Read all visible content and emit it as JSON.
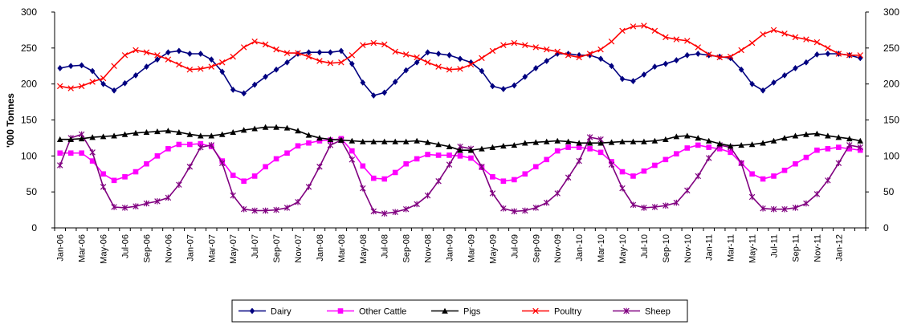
{
  "chart_data": {
    "type": "line",
    "ylabel": "'000 Tonnes",
    "ylim": [
      0,
      300
    ],
    "yticks": [
      0,
      50,
      100,
      150,
      200,
      250,
      300
    ],
    "secondary_y_axis": true,
    "grid": false,
    "legend_position": "bottom",
    "x": [
      "Jan-06",
      "Feb-06",
      "Mar-06",
      "Apr-06",
      "May-06",
      "Jun-06",
      "Jul-06",
      "Aug-06",
      "Sep-06",
      "Oct-06",
      "Nov-06",
      "Dec-06",
      "Jan-07",
      "Feb-07",
      "Mar-07",
      "Apr-07",
      "May-07",
      "Jun-07",
      "Jul-07",
      "Aug-07",
      "Sep-07",
      "Oct-07",
      "Nov-07",
      "Dec-07",
      "Jan-08",
      "Feb-08",
      "Mar-08",
      "Apr-08",
      "May-08",
      "Jun-08",
      "Jul-08",
      "Aug-08",
      "Sep-08",
      "Oct-08",
      "Nov-08",
      "Dec-08",
      "Jan-09",
      "Feb-09",
      "Mar-09",
      "Apr-09",
      "May-09",
      "Jun-09",
      "Jul-09",
      "Aug-09",
      "Sep-09",
      "Oct-09",
      "Nov-09",
      "Dec-09",
      "Jan-10",
      "Feb-10",
      "Mar-10",
      "Apr-10",
      "May-10",
      "Jun-10",
      "Jul-10",
      "Aug-10",
      "Sep-10",
      "Oct-10",
      "Nov-10",
      "Dec-10",
      "Jan-11",
      "Feb-11",
      "Mar-11",
      "Apr-11",
      "May-11",
      "Jun-11",
      "Jul-11",
      "Aug-11",
      "Sep-11",
      "Oct-11",
      "Nov-11",
      "Dec-11",
      "Jan-12",
      "Feb-12",
      "Mar-12"
    ],
    "xtick_labels": [
      "Jan-06",
      "Mar-06",
      "May-06",
      "Jul-06",
      "Sep-06",
      "Nov-06",
      "Jan-07",
      "Mar-07",
      "May-07",
      "Jul-07",
      "Sep-07",
      "Nov-07",
      "Jan-08",
      "Mar-08",
      "May-08",
      "Jul-08",
      "Sep-08",
      "Nov-08",
      "Jan-09",
      "Mar-09",
      "May-09",
      "Jul-09",
      "Sep-09",
      "Nov-09",
      "Jan-10",
      "Mar-10",
      "May-10",
      "Jul-10",
      "Sep-10",
      "Nov-10",
      "Jan-11",
      "Mar-11",
      "May-11",
      "Jul-11",
      "Sep-11",
      "Nov-11",
      "Jan-12"
    ],
    "series": [
      {
        "name": "Dairy",
        "color": "#000080",
        "marker": "diamond",
        "values": [
          222,
          225,
          226,
          218,
          200,
          191,
          201,
          212,
          224,
          234,
          244,
          246,
          242,
          242,
          234,
          217,
          192,
          187,
          199,
          210,
          220,
          230,
          242,
          244,
          244,
          244,
          246,
          228,
          202,
          184,
          188,
          203,
          219,
          230,
          244,
          242,
          240,
          235,
          230,
          218,
          197,
          193,
          198,
          210,
          222,
          232,
          242,
          242,
          240,
          240,
          235,
          225,
          207,
          204,
          213,
          224,
          228,
          233,
          240,
          242,
          240,
          238,
          236,
          220,
          200,
          191,
          202,
          212,
          222,
          230,
          241,
          242,
          242,
          240,
          236
        ]
      },
      {
        "name": "Other Cattle",
        "color": "#FF00FF",
        "marker": "square",
        "values": [
          104,
          104,
          104,
          93,
          75,
          66,
          71,
          78,
          89,
          100,
          110,
          116,
          116,
          117,
          113,
          93,
          73,
          65,
          72,
          85,
          96,
          104,
          114,
          118,
          121,
          122,
          124,
          107,
          86,
          69,
          68,
          77,
          89,
          96,
          102,
          101,
          101,
          100,
          97,
          84,
          71,
          65,
          67,
          75,
          85,
          95,
          107,
          112,
          112,
          110,
          105,
          92,
          78,
          72,
          79,
          87,
          95,
          103,
          111,
          115,
          112,
          110,
          105,
          90,
          75,
          68,
          72,
          80,
          89,
          98,
          108,
          110,
          112,
          110,
          108
        ]
      },
      {
        "name": "Pigs",
        "color": "#000000",
        "marker": "triangle",
        "values": [
          123,
          123,
          124,
          126,
          127,
          128,
          130,
          132,
          133,
          134,
          135,
          133,
          130,
          128,
          128,
          130,
          133,
          136,
          138,
          140,
          140,
          139,
          135,
          129,
          125,
          123,
          122,
          121,
          120,
          120,
          120,
          120,
          120,
          121,
          119,
          116,
          113,
          108,
          108,
          110,
          112,
          114,
          115,
          118,
          119,
          120,
          121,
          120,
          118,
          118,
          118,
          119,
          120,
          120,
          120,
          121,
          123,
          127,
          128,
          125,
          121,
          117,
          114,
          115,
          116,
          118,
          121,
          125,
          128,
          130,
          131,
          128,
          126,
          124,
          121
        ]
      },
      {
        "name": "Poultry",
        "color": "#FF0000",
        "marker": "x",
        "values": [
          197,
          194,
          197,
          203,
          208,
          225,
          240,
          247,
          244,
          240,
          234,
          227,
          220,
          221,
          224,
          230,
          238,
          251,
          259,
          255,
          248,
          243,
          243,
          238,
          232,
          229,
          230,
          240,
          254,
          257,
          255,
          245,
          241,
          237,
          230,
          224,
          220,
          221,
          227,
          236,
          246,
          254,
          257,
          254,
          251,
          248,
          245,
          240,
          237,
          242,
          248,
          259,
          274,
          280,
          281,
          274,
          265,
          262,
          260,
          251,
          241,
          237,
          238,
          247,
          257,
          269,
          275,
          270,
          265,
          262,
          258,
          250,
          242,
          240,
          240
        ]
      },
      {
        "name": "Sheep",
        "color": "#800080",
        "marker": "star",
        "values": [
          87,
          125,
          130,
          105,
          57,
          29,
          28,
          30,
          34,
          37,
          42,
          60,
          85,
          112,
          115,
          90,
          45,
          26,
          24,
          24,
          25,
          28,
          36,
          57,
          85,
          115,
          122,
          95,
          55,
          23,
          20,
          22,
          26,
          33,
          45,
          65,
          88,
          113,
          110,
          85,
          48,
          27,
          23,
          24,
          28,
          35,
          48,
          70,
          93,
          126,
          123,
          88,
          55,
          32,
          28,
          29,
          31,
          35,
          52,
          72,
          97,
          115,
          112,
          90,
          43,
          27,
          26,
          26,
          28,
          34,
          47,
          66,
          90,
          115,
          112
        ]
      }
    ]
  }
}
